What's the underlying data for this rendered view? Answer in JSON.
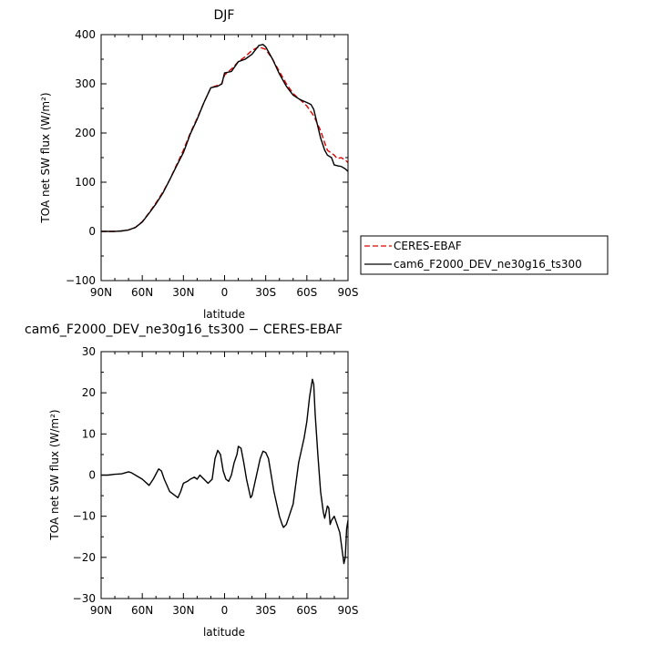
{
  "chart_data": [
    {
      "type": "line",
      "title": "DJF",
      "xlabel": "latitude",
      "ylabel": "TOA net SW flux (W/m²)",
      "xlim": [
        90,
        -90
      ],
      "ylim": [
        -100,
        400
      ],
      "x_ticks": [
        90,
        60,
        30,
        0,
        -30,
        -60,
        -90
      ],
      "x_tick_labels": [
        "90N",
        "60N",
        "30N",
        "0",
        "30S",
        "60S",
        "90S"
      ],
      "y_ticks": [
        -100,
        0,
        100,
        200,
        300,
        400
      ],
      "y_tick_labels": [
        "−100",
        "0",
        "100",
        "200",
        "300",
        "400"
      ],
      "series": [
        {
          "name": "CERES-EBAF",
          "color": "#e00000",
          "dash": "dashed",
          "points": [
            [
              90,
              0
            ],
            [
              80,
              0
            ],
            [
              75,
              1
            ],
            [
              70,
              3
            ],
            [
              65,
              8
            ],
            [
              60,
              20
            ],
            [
              55,
              38
            ],
            [
              50,
              58
            ],
            [
              45,
              80
            ],
            [
              40,
              105
            ],
            [
              35,
              135
            ],
            [
              30,
              165
            ],
            [
              25,
              200
            ],
            [
              20,
              230
            ],
            [
              15,
              262
            ],
            [
              10,
              292
            ],
            [
              5,
              297
            ],
            [
              2,
              300
            ],
            [
              0,
              318
            ],
            [
              -5,
              330
            ],
            [
              -10,
              345
            ],
            [
              -15,
              355
            ],
            [
              -20,
              368
            ],
            [
              -25,
              375
            ],
            [
              -30,
              370
            ],
            [
              -35,
              350
            ],
            [
              -40,
              325
            ],
            [
              -45,
              300
            ],
            [
              -50,
              280
            ],
            [
              -55,
              268
            ],
            [
              -60,
              255
            ],
            [
              -65,
              235
            ],
            [
              -70,
              205
            ],
            [
              -73,
              180
            ],
            [
              -75,
              165
            ],
            [
              -80,
              155
            ],
            [
              -82,
              148
            ],
            [
              -85,
              150
            ],
            [
              -88,
              145
            ],
            [
              -90,
              140
            ]
          ]
        },
        {
          "name": "cam6_F2000_DEV_ne30g16_ts300",
          "color": "#000000",
          "dash": "solid",
          "points": [
            [
              90,
              0
            ],
            [
              80,
              0
            ],
            [
              75,
              1
            ],
            [
              70,
              3
            ],
            [
              65,
              8
            ],
            [
              60,
              19
            ],
            [
              55,
              37
            ],
            [
              50,
              56
            ],
            [
              45,
              78
            ],
            [
              40,
              105
            ],
            [
              35,
              133
            ],
            [
              30,
              160
            ],
            [
              25,
              198
            ],
            [
              20,
              228
            ],
            [
              15,
              262
            ],
            [
              10,
              292
            ],
            [
              5,
              295
            ],
            [
              2,
              300
            ],
            [
              0,
              322
            ],
            [
              -5,
              325
            ],
            [
              -10,
              345
            ],
            [
              -15,
              350
            ],
            [
              -20,
              360
            ],
            [
              -25,
              378
            ],
            [
              -28,
              380
            ],
            [
              -30,
              375
            ],
            [
              -35,
              350
            ],
            [
              -40,
              320
            ],
            [
              -45,
              295
            ],
            [
              -50,
              277
            ],
            [
              -55,
              268
            ],
            [
              -60,
              262
            ],
            [
              -63,
              258
            ],
            [
              -65,
              248
            ],
            [
              -70,
              190
            ],
            [
              -73,
              165
            ],
            [
              -75,
              155
            ],
            [
              -78,
              150
            ],
            [
              -80,
              135
            ],
            [
              -83,
              133
            ],
            [
              -85,
              132
            ],
            [
              -88,
              127
            ],
            [
              -90,
              122
            ]
          ]
        }
      ],
      "legend": {
        "placement": "right",
        "entries": [
          "CERES-EBAF",
          "cam6_F2000_DEV_ne30g16_ts300"
        ]
      }
    },
    {
      "type": "line",
      "title": "cam6_F2000_DEV_ne30g16_ts300 − CERES-EBAF",
      "xlabel": "latitude",
      "ylabel": "TOA net SW flux (W/m²)",
      "xlim": [
        90,
        -90
      ],
      "ylim": [
        -30,
        30
      ],
      "x_ticks": [
        90,
        60,
        30,
        0,
        -30,
        -60,
        -90
      ],
      "x_tick_labels": [
        "90N",
        "60N",
        "30N",
        "0",
        "30S",
        "60S",
        "90S"
      ],
      "y_ticks": [
        -30,
        -20,
        -10,
        0,
        10,
        20,
        30
      ],
      "y_tick_labels": [
        "−30",
        "−20",
        "−10",
        "0",
        "10",
        "20",
        "30"
      ],
      "series": [
        {
          "name": "",
          "color": "#000000",
          "dash": "solid",
          "points": [
            [
              90,
              0
            ],
            [
              85,
              0
            ],
            [
              80,
              0.2
            ],
            [
              75,
              0.3
            ],
            [
              70,
              0.8
            ],
            [
              68,
              0.6
            ],
            [
              65,
              0
            ],
            [
              60,
              -1
            ],
            [
              55,
              -2.5
            ],
            [
              52,
              -1
            ],
            [
              48,
              1.5
            ],
            [
              46,
              1
            ],
            [
              44,
              -1
            ],
            [
              40,
              -4
            ],
            [
              36,
              -5
            ],
            [
              34,
              -5.5
            ],
            [
              32,
              -4
            ],
            [
              30,
              -2
            ],
            [
              27,
              -1.5
            ],
            [
              25,
              -1
            ],
            [
              22,
              -0.5
            ],
            [
              20,
              -1
            ],
            [
              18,
              0
            ],
            [
              15,
              -1
            ],
            [
              12,
              -2
            ],
            [
              9,
              -1
            ],
            [
              7,
              4
            ],
            [
              5,
              6
            ],
            [
              3,
              5
            ],
            [
              1,
              1
            ],
            [
              -1,
              -1
            ],
            [
              -3,
              -1.5
            ],
            [
              -5,
              0
            ],
            [
              -7,
              3
            ],
            [
              -9,
              5
            ],
            [
              -10,
              7
            ],
            [
              -12,
              6.5
            ],
            [
              -14,
              3
            ],
            [
              -16,
              -1
            ],
            [
              -18,
              -4
            ],
            [
              -19,
              -5.5
            ],
            [
              -20,
              -5
            ],
            [
              -22,
              -2
            ],
            [
              -24,
              1
            ],
            [
              -26,
              4
            ],
            [
              -28,
              5.8
            ],
            [
              -30,
              5.5
            ],
            [
              -32,
              4
            ],
            [
              -34,
              0
            ],
            [
              -36,
              -4
            ],
            [
              -38,
              -7
            ],
            [
              -40,
              -10
            ],
            [
              -42,
              -12
            ],
            [
              -43,
              -12.7
            ],
            [
              -45,
              -12
            ],
            [
              -47,
              -10
            ],
            [
              -50,
              -7
            ],
            [
              -52,
              -2
            ],
            [
              -54,
              3
            ],
            [
              -56,
              6
            ],
            [
              -58,
              9
            ],
            [
              -60,
              13
            ],
            [
              -62,
              19
            ],
            [
              -64,
              23.3
            ],
            [
              -65,
              22
            ],
            [
              -66,
              15
            ],
            [
              -68,
              5
            ],
            [
              -70,
              -4
            ],
            [
              -72,
              -9
            ],
            [
              -73,
              -10.5
            ],
            [
              -74,
              -9
            ],
            [
              -75,
              -7.5
            ],
            [
              -76,
              -8
            ],
            [
              -77,
              -12
            ],
            [
              -78,
              -11
            ],
            [
              -80,
              -10
            ],
            [
              -82,
              -12
            ],
            [
              -84,
              -14
            ],
            [
              -86,
              -19
            ],
            [
              -87,
              -21.5
            ],
            [
              -88,
              -20
            ],
            [
              -89,
              -13
            ],
            [
              -90,
              -11
            ]
          ]
        }
      ]
    }
  ]
}
